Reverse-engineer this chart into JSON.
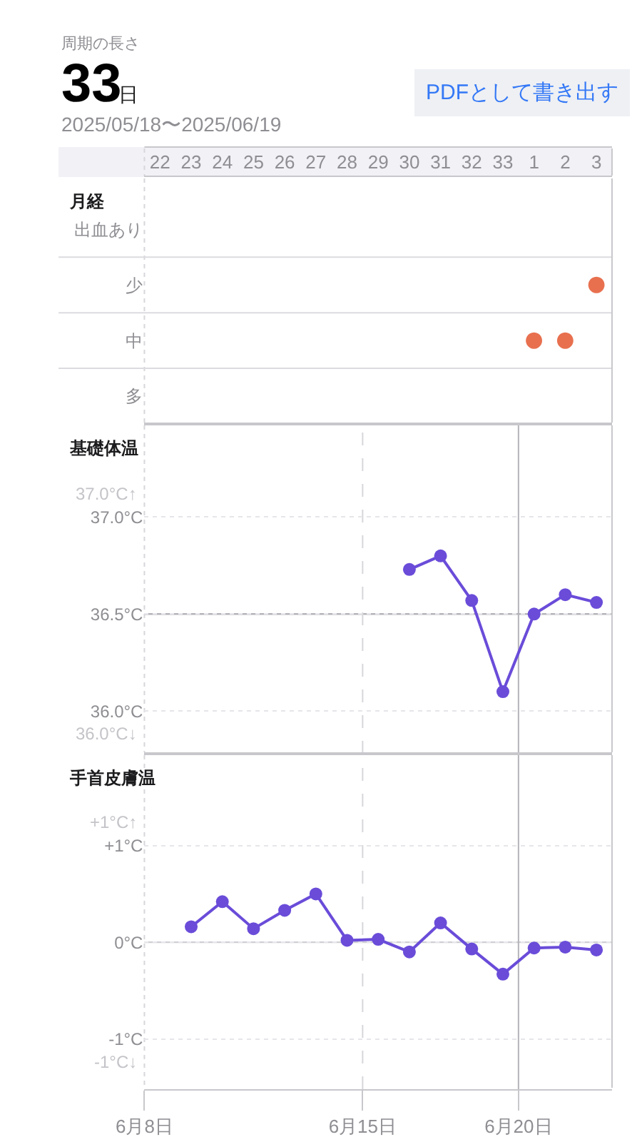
{
  "chart_data": [
    {
      "type": "other",
      "title": "周期の長さ",
      "annotations": [
        "33",
        "日",
        "2025/05/18〜2025/06/19",
        "PDFとして書き出す"
      ]
    },
    {
      "type": "heatmap",
      "title": "月経",
      "categories": [
        "22",
        "23",
        "24",
        "25",
        "26",
        "27",
        "28",
        "29",
        "30",
        "31",
        "32",
        "33",
        "1",
        "2",
        "3"
      ],
      "y_categories": [
        "出血あり",
        "少",
        "中",
        "多"
      ],
      "cells": [
        [
          null,
          null,
          null,
          null,
          null,
          null,
          null,
          null,
          null,
          null,
          null,
          null,
          null,
          null,
          null
        ],
        [
          null,
          null,
          null,
          null,
          null,
          null,
          null,
          null,
          null,
          null,
          null,
          null,
          null,
          null,
          null
        ],
        [
          null,
          null,
          null,
          null,
          null,
          null,
          null,
          null,
          null,
          null,
          null,
          null,
          null,
          null,
          null
        ],
        [
          null,
          null,
          null,
          null,
          null,
          null,
          null,
          null,
          null,
          null,
          null,
          null,
          null,
          null,
          null
        ]
      ],
      "cell_labels": [
        [
          null,
          null,
          null,
          null,
          null,
          null,
          null,
          null,
          null,
          null,
          null,
          null,
          null,
          null,
          null
        ],
        [
          null,
          null,
          null,
          null,
          null,
          null,
          null,
          null,
          null,
          null,
          null,
          null,
          null,
          null,
          "●"
        ],
        [
          null,
          null,
          null,
          null,
          null,
          null,
          null,
          null,
          null,
          null,
          null,
          null,
          "●",
          "●",
          null
        ],
        [
          null,
          null,
          null,
          null,
          null,
          null,
          null,
          null,
          null,
          null,
          null,
          null,
          null,
          null,
          null
        ]
      ],
      "color": "#e8704f",
      "grid": "y"
    },
    {
      "type": "line",
      "title": "基礎体温",
      "x": [
        "2025-06-16T12:00",
        "2025-06-17T12:00",
        "2025-06-18T12:00",
        "2025-06-19T12:00",
        "2025-06-20T12:00",
        "2025-06-21T12:00",
        "2025-06-22T12:00"
      ],
      "values": [
        36.73,
        36.8,
        36.57,
        36.1,
        36.5,
        36.6,
        36.56
      ],
      "color": "#6a4cd9",
      "marker": "circle",
      "line_style": "solid",
      "xlim": [
        "2025-06-08",
        "2025-06-23"
      ],
      "ylim": [
        35.78,
        37.48
      ],
      "yticks": [
        {
          "value": 37.0,
          "label": "37.0°C"
        },
        {
          "value": 36.5,
          "label": "36.5°C"
        },
        {
          "value": 36.0,
          "label": "36.0°C"
        }
      ],
      "tick_labels": "y",
      "grid": "y",
      "annotations": [
        "37.0°C↑",
        "36.0°C↓"
      ],
      "ref_lines": [
        {
          "axis": "y",
          "value": 36.5,
          "color": "#b4b4b9"
        },
        {
          "axis": "x",
          "value": "2025-06-15",
          "line_style": "dashed",
          "color": "#d6d6db"
        },
        {
          "axis": "x",
          "value": "2025-06-20",
          "color": "#b4b4b9"
        }
      ]
    },
    {
      "type": "line",
      "title": "手首皮膚温",
      "x": [
        "2025-06-09T12:00",
        "2025-06-10T12:00",
        "2025-06-11T12:00",
        "2025-06-12T12:00",
        "2025-06-13T12:00",
        "2025-06-14T12:00",
        "2025-06-15T12:00",
        "2025-06-16T12:00",
        "2025-06-17T12:00",
        "2025-06-18T12:00",
        "2025-06-19T12:00",
        "2025-06-20T12:00",
        "2025-06-21T12:00",
        "2025-06-22T12:00"
      ],
      "values": [
        0.16,
        0.42,
        0.14,
        0.33,
        0.5,
        0.02,
        0.03,
        -0.1,
        0.2,
        -0.07,
        -0.33,
        -0.06,
        -0.05,
        -0.08
      ],
      "color": "#6a4cd9",
      "marker": "circle",
      "line_style": "solid",
      "xlim": [
        "2025-06-08",
        "2025-06-23"
      ],
      "xticks": [
        {
          "value": "2025-06-08",
          "label": "6月8日"
        },
        {
          "value": "2025-06-15",
          "label": "6月15日"
        },
        {
          "value": "2025-06-20",
          "label": "6月20日"
        }
      ],
      "ylim": [
        -1.52,
        1.95
      ],
      "yticks": [
        {
          "value": 1,
          "label": "+1°C"
        },
        {
          "value": 0,
          "label": "0°C"
        },
        {
          "value": -1,
          "label": "-1°C"
        }
      ],
      "grid": "y",
      "annotations": [
        "+1°C↑",
        "-1°C↓"
      ],
      "ref_lines": [
        {
          "axis": "y",
          "value": 0,
          "color": "#cfcfd4"
        },
        {
          "axis": "x",
          "value": "2025-06-15",
          "line_style": "dashed",
          "color": "#d6d6db"
        },
        {
          "axis": "x",
          "value": "2025-06-20",
          "color": "#b4b4b9"
        }
      ]
    }
  ]
}
